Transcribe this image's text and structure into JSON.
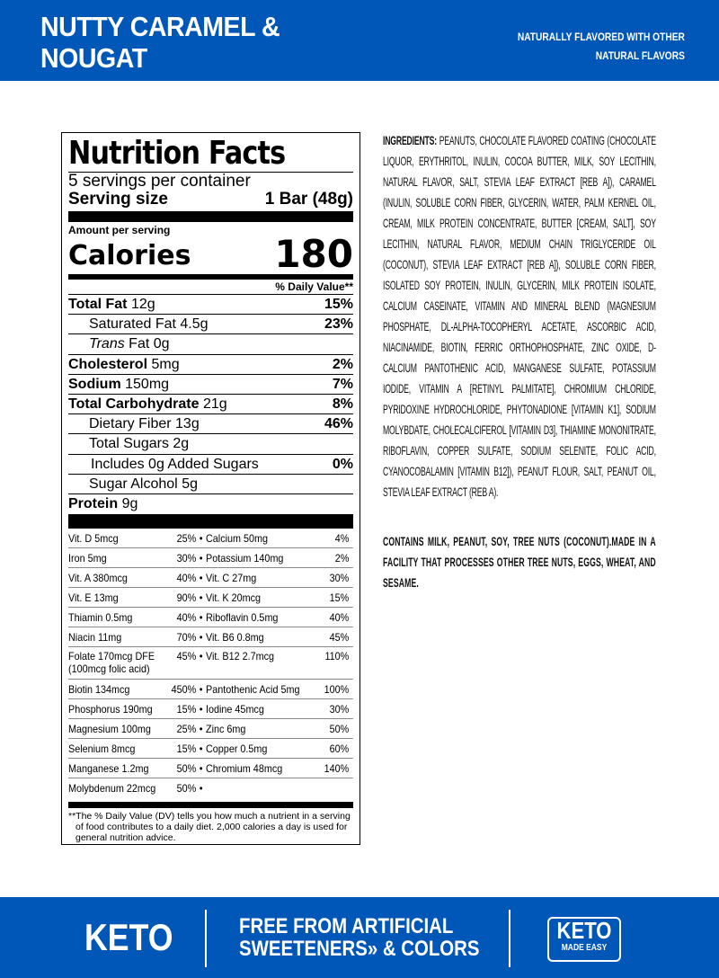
{
  "header": {
    "title_line1": "NUTTY CARAMEL &",
    "title_line2": "NOUGAT",
    "note_line1": "NATURALLY FLAVORED WITH OTHER",
    "note_line2": "NATURAL FLAVORS"
  },
  "label": {
    "title": "Nutrition Facts",
    "servings": "5 servings per container",
    "serving_size_label": "Serving size",
    "serving_size": "1 Bar (48g)",
    "amount_per_serving": "Amount per serving",
    "calories_label": "Calories",
    "calories": "180",
    "dv_header": "% Daily Value**",
    "nutrients": [
      {
        "name": "Total Fat",
        "amount": "12g",
        "dv": "15%",
        "bold": true,
        "indent": 0
      },
      {
        "name": "Saturated Fat",
        "amount": "4.5g",
        "dv": "23%",
        "bold": false,
        "indent": 1
      },
      {
        "name": "Trans",
        "amount": "Fat 0g",
        "dv": "",
        "bold": false,
        "indent": 1,
        "italic": true
      },
      {
        "name": "Cholesterol",
        "amount": "5mg",
        "dv": "2%",
        "bold": true,
        "indent": 0
      },
      {
        "name": "Sodium",
        "amount": "150mg",
        "dv": "7%",
        "bold": true,
        "indent": 0
      },
      {
        "name": "Total Carbohydrate",
        "amount": "21g",
        "dv": "8%",
        "bold": true,
        "indent": 0
      },
      {
        "name": "Dietary Fiber",
        "amount": "13g",
        "dv": "46%",
        "bold": false,
        "indent": 1
      },
      {
        "name": "Total Sugars",
        "amount": "2g",
        "dv": "",
        "bold": false,
        "indent": 1
      },
      {
        "name": "Includes 0g Added Sugars",
        "amount": "",
        "dv": "0%",
        "bold": false,
        "indent": 2
      },
      {
        "name": "Sugar Alcohol",
        "amount": "5g",
        "dv": "",
        "bold": false,
        "indent": 1
      },
      {
        "name": "Protein",
        "amount": "9g",
        "dv": "",
        "bold": true,
        "indent": 0
      }
    ],
    "vitamins": [
      [
        "Vit. D 5mcg",
        "25%",
        "Calcium 50mg",
        "4%"
      ],
      [
        "Iron 5mg",
        "30%",
        "Potassium 140mg",
        "2%"
      ],
      [
        "Vit. A 380mcg",
        "40%",
        "Vit. C 27mg",
        "30%"
      ],
      [
        "Vit. E 13mg",
        "90%",
        "Vit. K 20mcg",
        "15%"
      ],
      [
        "Thiamin 0.5mg",
        "40%",
        "Riboflavin 0.5mg",
        "40%"
      ],
      [
        "Niacin 11mg",
        "70%",
        "Vit. B6 0.8mg",
        "45%"
      ],
      [
        "Folate 170mcg DFE (100mcg folic acid)",
        "45%",
        "Vit. B12 2.7mcg",
        "110%"
      ],
      [
        "Biotin 134mcg",
        "450%",
        "Pantothenic Acid 5mg",
        "100%"
      ],
      [
        "Phosphorus 190mg",
        "15%",
        "Iodine 45mcg",
        "30%"
      ],
      [
        "Magnesium 100mg",
        "25%",
        "Zinc 6mg",
        "50%"
      ],
      [
        "Selenium 8mcg",
        "15%",
        "Copper 0.5mg",
        "60%"
      ],
      [
        "Manganese 1.2mg",
        "50%",
        "Chromium 48mcg",
        "140%"
      ],
      [
        "Molybdenum 22mcg",
        "50%",
        "",
        ""
      ]
    ],
    "footnote": "**The % Daily Value (DV) tells you how much a nutrient in a serving of food contributes to a daily diet. 2,000 calories a day is used for general nutrition advice."
  },
  "ingredients": {
    "label": "INGREDIENTS:",
    "text": "PEANUTS, CHOCOLATE FLAVORED COATING (CHOCOLATE LIQUOR, ERYTHRITOL, INULIN, COCOA BUTTER, MILK, SOY LECITHIN, NATURAL FLAVOR, SALT, STEVIA LEAF EXTRACT [REB A]), CARAMEL (INULIN, SOLUBLE CORN FIBER, GLYCERIN, WATER, PALM KERNEL OIL, CREAM, MILK PROTEIN CONCENTRATE, BUTTER [CREAM, SALT], SOY LECITHIN, NATURAL FLAVOR, MEDIUM CHAIN TRIGLYCERIDE OIL (COCONUT), STEVIA LEAF EXTRACT [REB A]), SOLUBLE CORN FIBER, ISOLATED SOY PROTEIN, INULIN, GLYCERIN, MILK PROTEIN ISOLATE, CALCIUM CASEINATE, VITAMIN AND MINERAL BLEND (MAGNESIUM PHOSPHATE, DL-ALPHA-TOCOPHERYL ACETATE, ASCORBIC ACID, NIACINAMIDE, BIOTIN, FERRIC ORTHOPHOSPHATE, ZINC OXIDE, D-CALCIUM PANTOTHENIC ACID, MANGANESE SULFATE, POTASSIUM IODIDE, VITAMIN A [RETINYL PALMITATE], CHROMIUM CHLORIDE, PYRIDOXINE HYDROCHLORIDE, PHYTONADIONE [VITAMIN K1], SODIUM MOLYBDATE, CHOLECALCIFEROL [VITAMIN D3], THIAMINE MONONITRATE, RIBOFLAVIN, COPPER SULFATE, SODIUM SELENITE, FOLIC ACID, CYANOCOBALAMIN [VITAMIN B12]), PEANUT FLOUR, SALT, PEANUT OIL, STEVIA LEAF EXTRACT (REB A).",
    "contains": "CONTAINS MILK, PEANUT, SOY, TREE NUTS (COCONUT).MADE IN A FACILITY THAT PROCESSES OTHER TREE NUTS, EGGS, WHEAT, AND SESAME."
  },
  "footer": {
    "keto": "KETO",
    "free_line1": "FREE FROM ARTIFICIAL",
    "free_line2": "SWEETENERS» & COLORS",
    "badge_top": "KETO",
    "badge_bottom": "MADE EASY"
  },
  "colors": {
    "brand_blue": "#0057b8"
  }
}
